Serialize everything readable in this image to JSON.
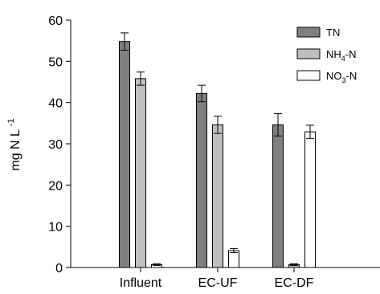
{
  "chart_data": {
    "type": "bar",
    "categories": [
      "Influent",
      "EC-UF",
      "EC-DF"
    ],
    "series": [
      {
        "name": "TN",
        "values": [
          54.8,
          42.2,
          34.6
        ],
        "errors": [
          2.1,
          2.0,
          2.7
        ],
        "color": "#7f7f7f"
      },
      {
        "name": "NH4-N",
        "values": [
          45.8,
          34.6,
          0.7
        ],
        "errors": [
          1.6,
          2.1,
          0.2
        ],
        "color": "#bfbfbf"
      },
      {
        "name": "NO3-N",
        "values": [
          0.7,
          4.1,
          32.9
        ],
        "errors": [
          0.2,
          0.5,
          1.6
        ],
        "color": "#ffffff"
      }
    ],
    "legend": [
      {
        "main": "NH",
        "sub": "4",
        "rest": "-N"
      },
      {
        "main": "NO",
        "sub": "3",
        "rest": "-N"
      }
    ],
    "legend_position": "top-right",
    "ylabel": {
      "main": "mg N L",
      "sup": "-1"
    },
    "ylim": [
      0,
      60
    ],
    "yticks": [
      0,
      10,
      20,
      30,
      40,
      50,
      60
    ],
    "grid": false
  }
}
